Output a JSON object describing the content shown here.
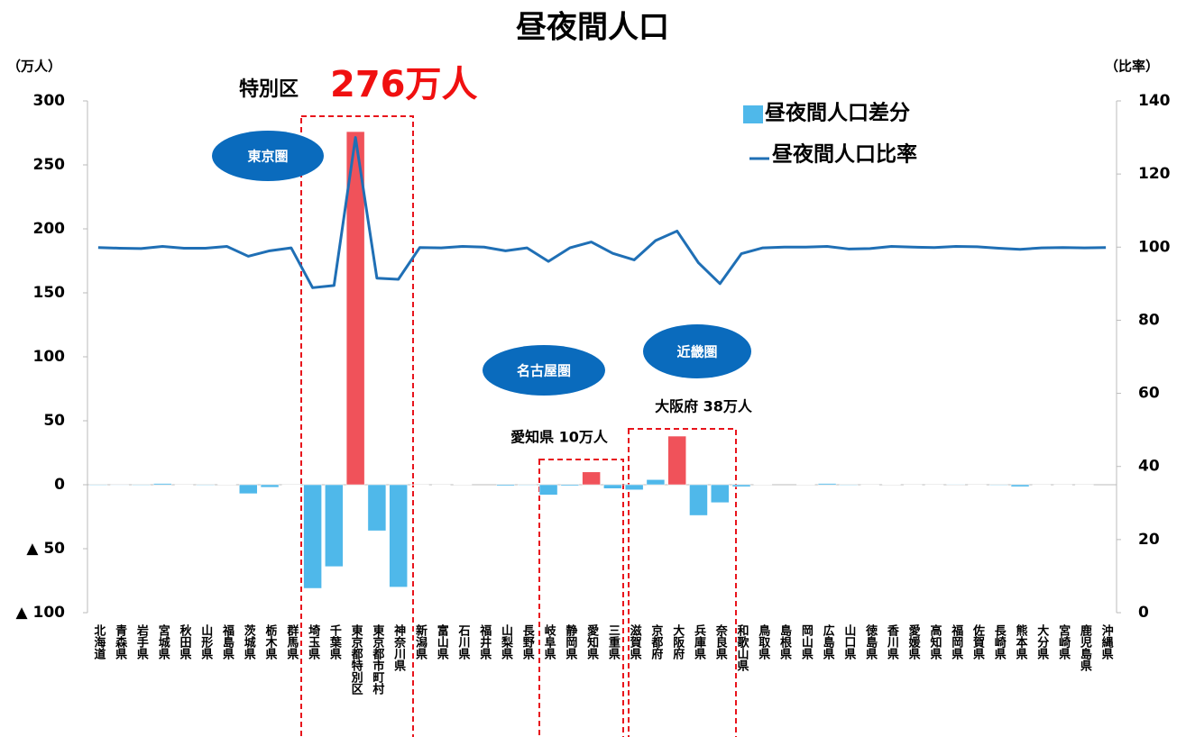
{
  "chart_data": {
    "type": "bar_line",
    "title": "昼夜間人口",
    "y_label": "（万人）",
    "y2_label": "（比率）",
    "annotations": [
      "特別区",
      "276万人",
      "東京圏",
      "名古屋圏",
      "近畿圏",
      "愛知県 10万人",
      "大阪府 38万人"
    ],
    "categories": [
      "北海道",
      "青森県",
      "岩手県",
      "宮城県",
      "秋田県",
      "山形県",
      "福島県",
      "茨城県",
      "栃木県",
      "群馬県",
      "埼玉県",
      "千葉県",
      "東京都特別区",
      "東京都市町村",
      "神奈川県",
      "新潟県",
      "富山県",
      "石川県",
      "福井県",
      "山梨県",
      "長野県",
      "岐阜県",
      "静岡県",
      "愛知県",
      "三重県",
      "滋賀県",
      "京都府",
      "大阪府",
      "兵庫県",
      "奈良県",
      "和歌山県",
      "鳥取県",
      "島根県",
      "岡山県",
      "広島県",
      "山口県",
      "徳島県",
      "香川県",
      "愛媛県",
      "高知県",
      "福岡県",
      "佐賀県",
      "長崎県",
      "熊本県",
      "大分県",
      "宮崎県",
      "鹿児島県",
      "沖縄県"
    ],
    "series": [
      {
        "name": "昼夜間人口差分",
        "kind": "bar",
        "color": "#4fb8ea",
        "colors": [
          "#4fb8ea",
          "#4fb8ea",
          "#4fb8ea",
          "#4fb8ea",
          "#4fb8ea",
          "#4fb8ea",
          "#4fb8ea",
          "#4fb8ea",
          "#4fb8ea",
          "#4fb8ea",
          "#4fb8ea",
          "#4fb8ea",
          "#f0525a",
          "#4fb8ea",
          "#4fb8ea",
          "#4fb8ea",
          "#4fb8ea",
          "#4fb8ea",
          "#4fb8ea",
          "#4fb8ea",
          "#4fb8ea",
          "#4fb8ea",
          "#4fb8ea",
          "#f0525a",
          "#4fb8ea",
          "#4fb8ea",
          "#4fb8ea",
          "#f0525a",
          "#4fb8ea",
          "#4fb8ea",
          "#4fb8ea",
          "#4fb8ea",
          "#4fb8ea",
          "#4fb8ea",
          "#4fb8ea",
          "#4fb8ea",
          "#4fb8ea",
          "#4fb8ea",
          "#4fb8ea",
          "#4fb8ea",
          "#4fb8ea",
          "#4fb8ea",
          "#4fb8ea",
          "#4fb8ea",
          "#4fb8ea",
          "#4fb8ea",
          "#4fb8ea",
          "#4fb8ea"
        ],
        "values": [
          -0.5,
          -0.4,
          -0.5,
          1,
          -0.3,
          -0.5,
          0.3,
          -7,
          -2,
          -0.2,
          -81,
          -64,
          276,
          -36,
          -80,
          -0.3,
          -0.2,
          0.3,
          0,
          -0.9,
          -0.5,
          -8,
          -0.9,
          10,
          -3,
          -4,
          4,
          38,
          -24,
          -14,
          -1.5,
          0.2,
          0,
          0.3,
          1,
          -0.5,
          -0.3,
          0.2,
          -0.3,
          -0.2,
          0.4,
          -0.3,
          -0.5,
          -1.5,
          -0.3,
          -0.3,
          -0.3,
          0
        ]
      },
      {
        "name": "昼夜間人口比率",
        "kind": "line",
        "axis": "y2",
        "color": "#1f6fb5",
        "values": [
          99.9,
          99.7,
          99.6,
          100.2,
          99.7,
          99.7,
          100.2,
          97.5,
          99.0,
          99.8,
          88.9,
          89.5,
          130,
          91.5,
          91.2,
          99.9,
          99.8,
          100.2,
          100.0,
          99.0,
          99.8,
          96.1,
          99.8,
          101.4,
          98.3,
          96.5,
          101.8,
          104.4,
          95.7,
          90.0,
          98.2,
          99.8,
          100.0,
          100.0,
          100.2,
          99.5,
          99.6,
          100.2,
          100.0,
          99.9,
          100.2,
          100.1,
          99.7,
          99.4,
          99.8,
          99.9,
          99.8,
          99.9
        ]
      }
    ],
    "ylim": [
      -100,
      300
    ],
    "yticks": [
      {
        "value": -100,
        "label": "▲ 100"
      },
      {
        "value": -50,
        "label": "▲ 50"
      },
      0,
      50,
      100,
      150,
      200,
      250,
      300
    ],
    "y2lim": [
      0,
      140
    ],
    "y2ticks": [
      0,
      20,
      40,
      60,
      80,
      100,
      120,
      140
    ],
    "grid": false
  }
}
